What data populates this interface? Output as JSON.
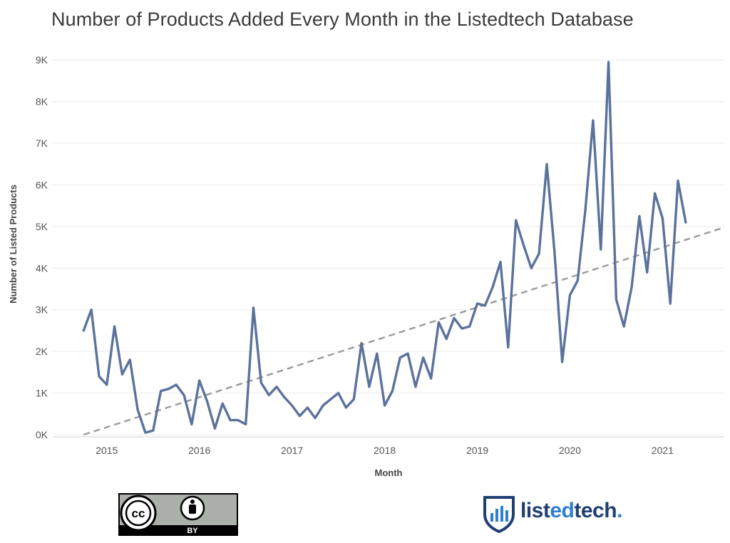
{
  "chart_data": {
    "type": "line",
    "title": "Number of Products Added Every Month in the Listedtech Database",
    "xlabel": "Month",
    "ylabel": "Number of Listed Products",
    "x_ticks": [
      "2015",
      "2016",
      "2017",
      "2018",
      "2019",
      "2020",
      "2021"
    ],
    "y_ticks": [
      "0K",
      "1K",
      "2K",
      "3K",
      "4K",
      "5K",
      "6K",
      "7K",
      "8K",
      "9K"
    ],
    "ylim": [
      0,
      9500
    ],
    "xlim": [
      "2014-06",
      "2021-09"
    ],
    "grid": true,
    "series": [
      {
        "color": "#5b729c",
        "x": [
          "2014-10",
          "2014-11",
          "2014-12",
          "2015-01",
          "2015-02",
          "2015-03",
          "2015-04",
          "2015-05",
          "2015-06",
          "2015-07",
          "2015-08",
          "2015-09",
          "2015-10",
          "2015-11",
          "2015-12",
          "2016-01",
          "2016-02",
          "2016-03",
          "2016-04",
          "2016-05",
          "2016-06",
          "2016-07",
          "2016-08",
          "2016-09",
          "2016-10",
          "2016-11",
          "2016-12",
          "2017-01",
          "2017-02",
          "2017-03",
          "2017-04",
          "2017-05",
          "2017-06",
          "2017-07",
          "2017-08",
          "2017-09",
          "2017-10",
          "2017-11",
          "2017-12",
          "2018-01",
          "2018-02",
          "2018-03",
          "2018-04",
          "2018-05",
          "2018-06",
          "2018-07",
          "2018-08",
          "2018-09",
          "2018-10",
          "2018-11",
          "2018-12",
          "2019-01",
          "2019-02",
          "2019-03",
          "2019-04",
          "2019-05",
          "2019-06",
          "2019-07",
          "2019-08",
          "2019-09",
          "2019-10",
          "2019-11",
          "2019-12",
          "2020-01",
          "2020-02",
          "2020-03",
          "2020-04",
          "2020-05",
          "2020-06",
          "2020-07",
          "2020-08",
          "2020-09",
          "2020-10",
          "2020-11",
          "2020-12",
          "2021-01",
          "2021-02",
          "2021-03",
          "2021-04"
        ],
        "values": [
          2500,
          3000,
          1400,
          1200,
          2600,
          1450,
          1800,
          600,
          50,
          100,
          1050,
          1100,
          1200,
          950,
          250,
          1300,
          800,
          150,
          750,
          350,
          350,
          250,
          3050,
          1250,
          950,
          1150,
          900,
          700,
          450,
          650,
          400,
          700,
          850,
          1000,
          650,
          850,
          2200,
          1150,
          1950,
          700,
          1050,
          1850,
          1950,
          1150,
          1850,
          1350,
          2700,
          2300,
          2800,
          2550,
          2600,
          3150,
          3100,
          3550,
          4150,
          2100,
          5150,
          4550,
          4000,
          4350,
          6500,
          4400,
          1750,
          3350,
          3700,
          5400,
          7550,
          4450,
          8950,
          3250,
          2600,
          3550,
          5250,
          3900,
          5800,
          5200,
          3150,
          6100,
          5100
        ]
      }
    ],
    "trendline": {
      "style": "dashed",
      "color": "#9a9a9a",
      "start": [
        "2014-10",
        0
      ],
      "end": [
        "2021-09",
        4980
      ]
    }
  },
  "badge": {
    "label": "BY",
    "icon": "cc-by-license-icon"
  },
  "brand": {
    "name_prefix": "list",
    "name_mid": "ed",
    "name_suffix": "tech",
    "dot": ".",
    "icon": "listedtech-shield-icon"
  }
}
